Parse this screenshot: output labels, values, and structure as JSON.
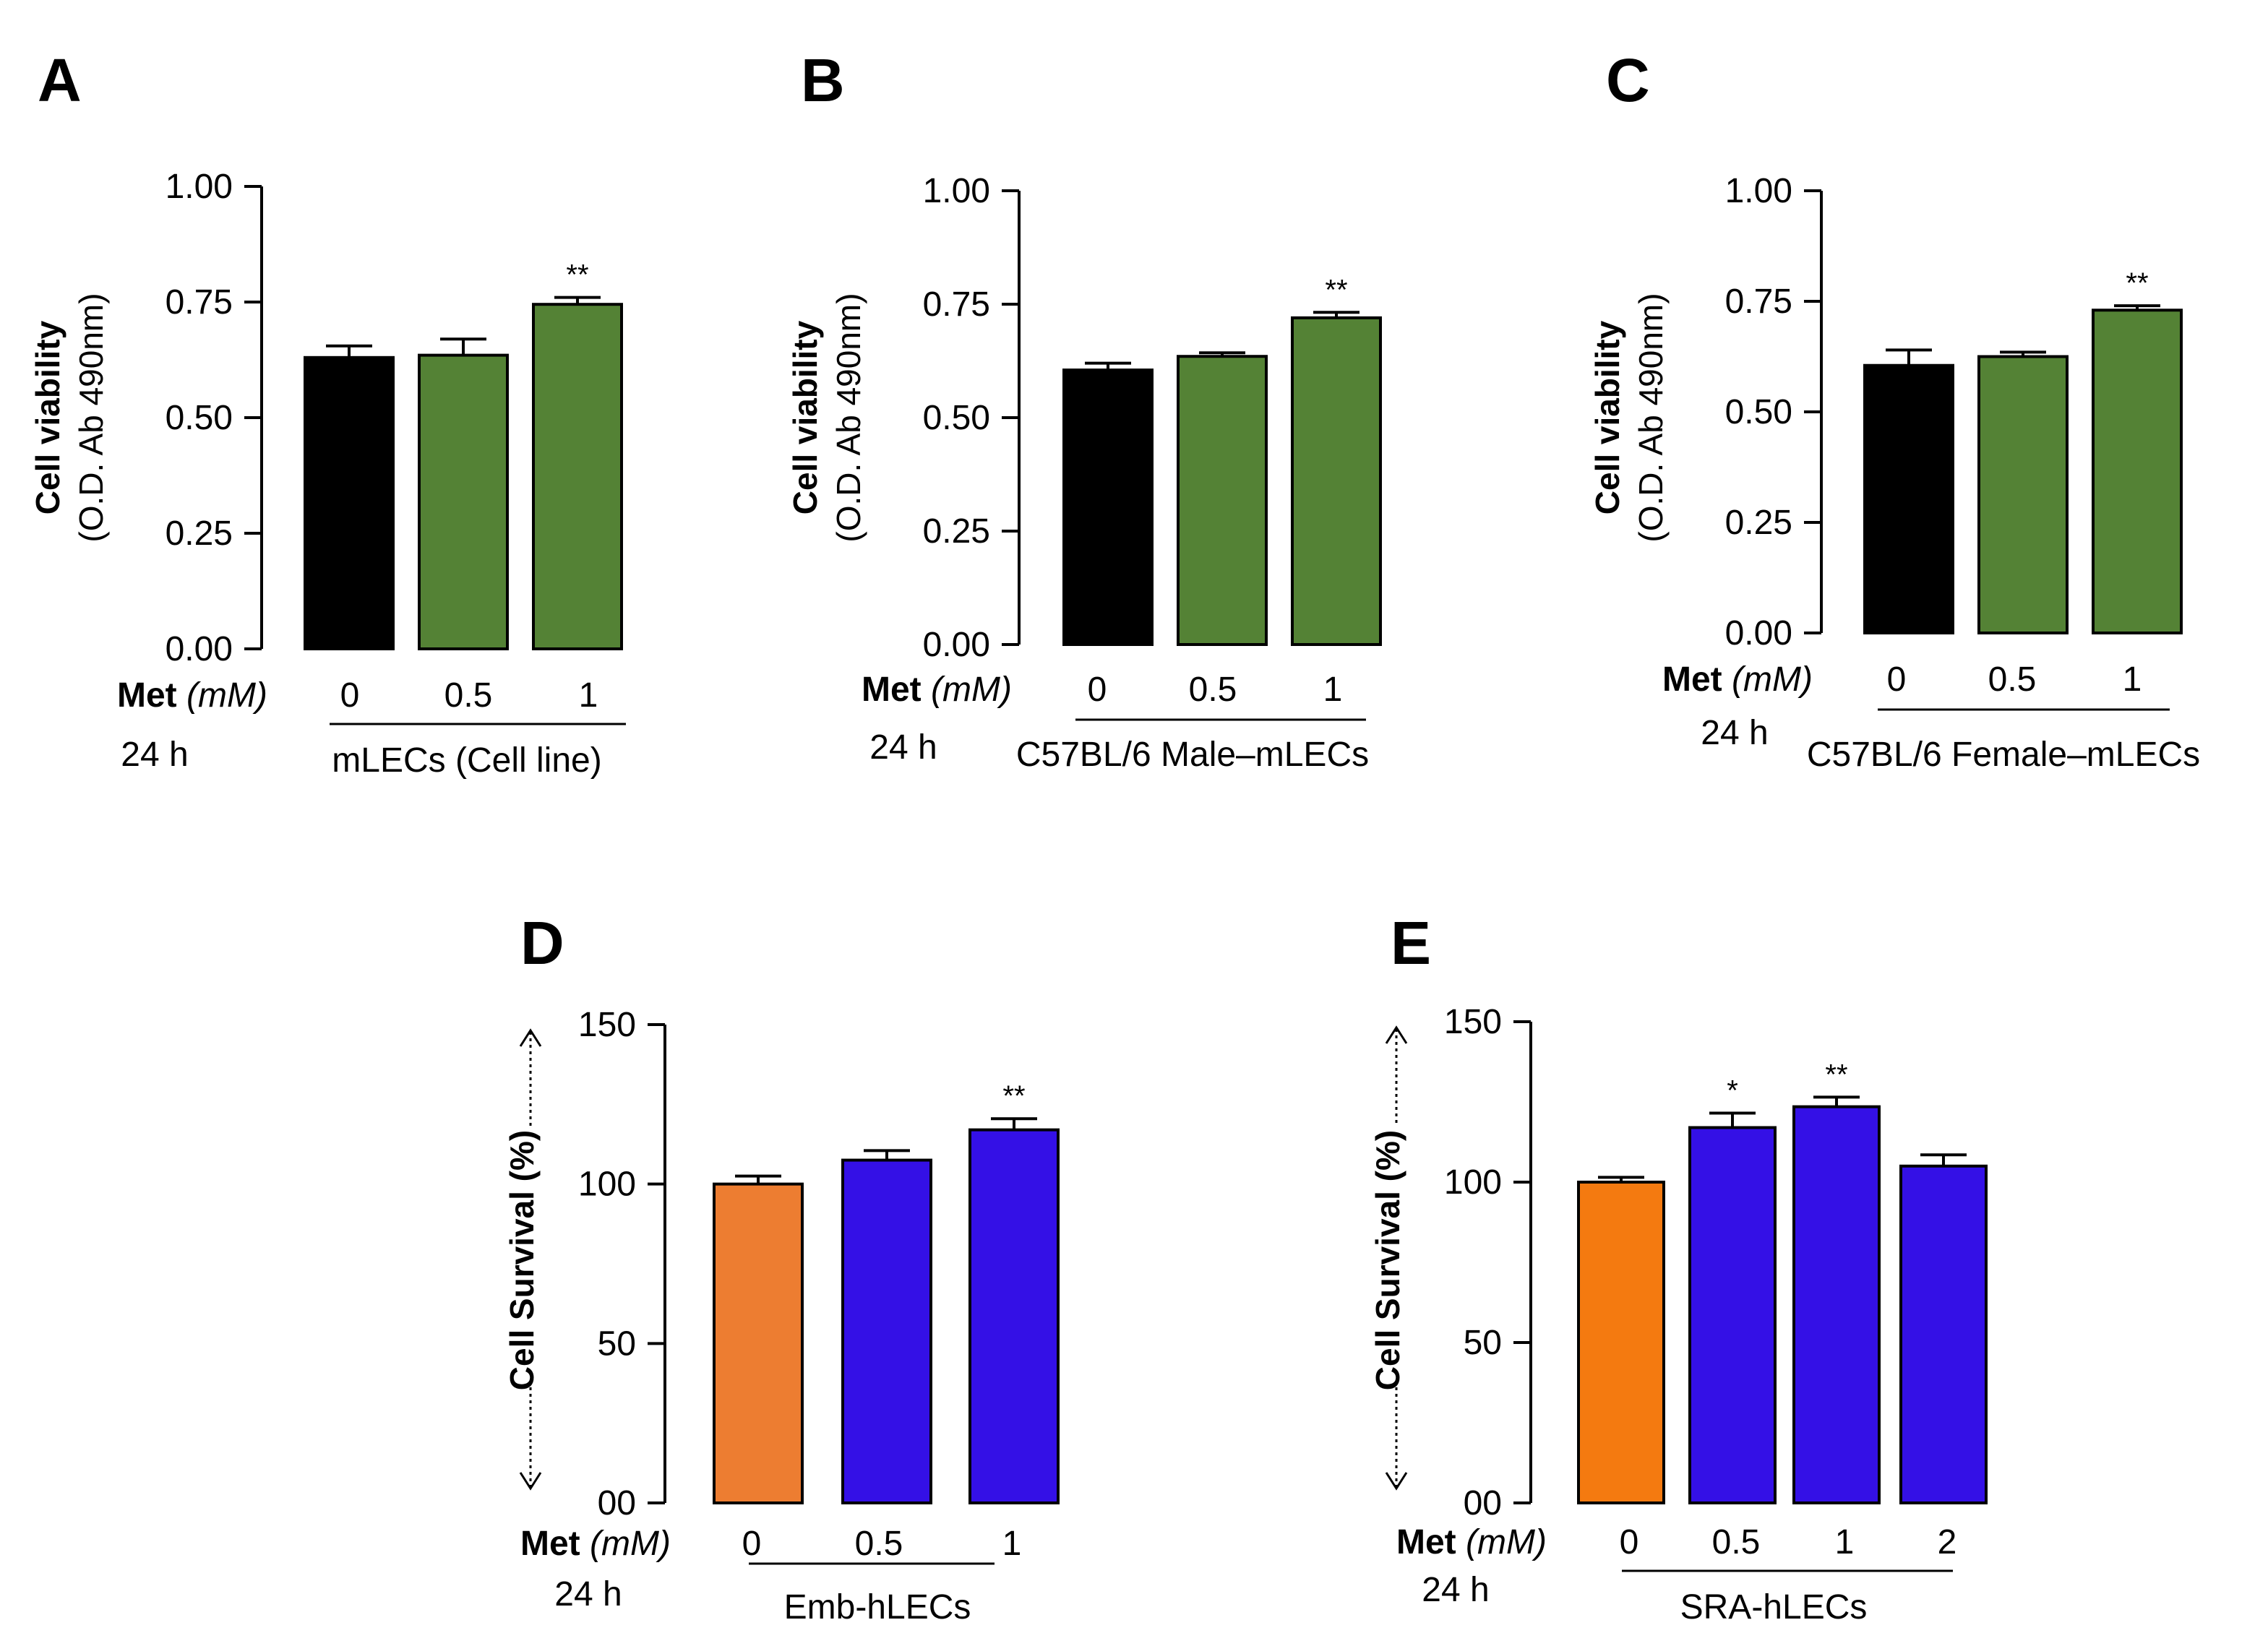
{
  "chart_data": [
    {
      "panel": "A",
      "type": "bar",
      "categories": [
        "0",
        "0.5",
        "1"
      ],
      "values": [
        0.63,
        0.635,
        0.745
      ],
      "errors": [
        0.025,
        0.035,
        0.015
      ],
      "colors": [
        "#000000",
        "#548235",
        "#548235"
      ],
      "significance": [
        "",
        "",
        "**"
      ],
      "ylabel": "Cell viability",
      "ylabel_sub": "(O.D. Ab 490nm)",
      "yticks": [
        "0.00",
        "0.25",
        "0.50",
        "0.75",
        "1.00"
      ],
      "ylim": [
        0,
        1.0
      ],
      "xlabel_prefix": "Met",
      "xlabel_unit": "(mM)",
      "time_label": "24 h",
      "group_label": "mLECs (Cell line)"
    },
    {
      "panel": "B",
      "type": "bar",
      "categories": [
        "0",
        "0.5",
        "1"
      ],
      "values": [
        0.605,
        0.635,
        0.72
      ],
      "errors": [
        0.015,
        0.008,
        0.012
      ],
      "colors": [
        "#000000",
        "#548235",
        "#548235"
      ],
      "significance": [
        "",
        "",
        "**"
      ],
      "ylabel": "Cell viability",
      "ylabel_sub": "(O.D. Ab 490nm)",
      "yticks": [
        "0.00",
        "0.25",
        "0.50",
        "0.75",
        "1.00"
      ],
      "ylim": [
        0,
        1.0
      ],
      "xlabel_prefix": "Met",
      "xlabel_unit": "(mM)",
      "time_label": "24 h",
      "group_label": "C57BL/6 Male–mLECs"
    },
    {
      "panel": "C",
      "type": "bar",
      "categories": [
        "0",
        "0.5",
        "1"
      ],
      "values": [
        0.605,
        0.625,
        0.73
      ],
      "errors": [
        0.035,
        0.01,
        0.01
      ],
      "colors": [
        "#000000",
        "#548235",
        "#548235"
      ],
      "significance": [
        "",
        "",
        "**"
      ],
      "ylabel": "Cell viability",
      "ylabel_sub": "(O.D. Ab 490nm)",
      "yticks": [
        "0.00",
        "0.25",
        "0.50",
        "0.75",
        "1.00"
      ],
      "ylim": [
        0,
        1.0
      ],
      "xlabel_prefix": "Met",
      "xlabel_unit": "(mM)",
      "time_label": "24 h",
      "group_label": "C57BL/6 Female–mLECs"
    },
    {
      "panel": "D",
      "type": "bar",
      "categories": [
        "0",
        "0.5",
        "1"
      ],
      "values": [
        100,
        107.5,
        117
      ],
      "errors": [
        2.5,
        3,
        3.5
      ],
      "colors": [
        "#ED7D31",
        "#3410E6",
        "#3410E6"
      ],
      "significance": [
        "",
        "",
        "**"
      ],
      "ylabel": "Cell Survival  (%)",
      "ylabel_sub": "",
      "yticks": [
        "00",
        "50",
        "100",
        "150"
      ],
      "ylim": [
        0,
        150
      ],
      "xlabel_prefix": "Met",
      "xlabel_unit": "(mM)",
      "time_label": "24 h",
      "group_label": "Emb-hLECs"
    },
    {
      "panel": "E",
      "type": "bar",
      "categories": [
        "0",
        "0.5",
        "1",
        "2"
      ],
      "values": [
        100,
        117,
        123.5,
        105
      ],
      "errors": [
        1.5,
        4.5,
        3,
        3.5
      ],
      "colors": [
        "#F47A10",
        "#3410E6",
        "#3410E6",
        "#3410E6"
      ],
      "significance": [
        "",
        "*",
        "**",
        ""
      ],
      "ylabel": "Cell Survival  (%)",
      "ylabel_sub": "",
      "yticks": [
        "00",
        "50",
        "100",
        "150"
      ],
      "ylim": [
        0,
        150
      ],
      "xlabel_prefix": "Met",
      "xlabel_unit": "(mM)",
      "time_label": "24 h",
      "group_label": "SRA-hLECs"
    }
  ]
}
